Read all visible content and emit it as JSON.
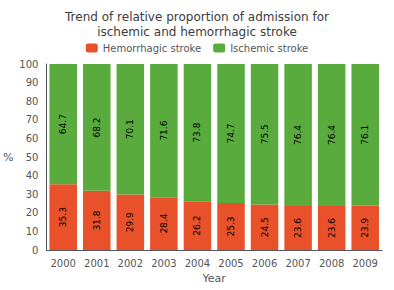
{
  "chart_data": {
    "type": "bar",
    "title": "Trend of relative proportion of admission for\nischemic and hemorrhagic stroke",
    "categories": [
      "2000",
      "2001",
      "2002",
      "2003",
      "2004",
      "2005",
      "2006",
      "2007",
      "2008",
      "2009"
    ],
    "series": [
      {
        "name": "Hemorrhagic stroke",
        "color": "#e8512a",
        "values": [
          35.3,
          31.8,
          29.9,
          28.4,
          26.2,
          25.3,
          24.5,
          23.6,
          23.6,
          23.9
        ]
      },
      {
        "name": "Ischemic stroke",
        "color": "#5aab3e",
        "values": [
          64.7,
          68.2,
          70.1,
          71.6,
          73.8,
          74.7,
          75.5,
          76.4,
          76.4,
          76.1
        ]
      }
    ],
    "stacked": true,
    "data_labels": true,
    "xlabel": "Year",
    "ylabel": "%",
    "ylim": [
      0,
      100
    ],
    "yticks": [
      0,
      10,
      20,
      30,
      40,
      50,
      60,
      70,
      80,
      90,
      100
    ],
    "grid": false,
    "legend": "top"
  }
}
